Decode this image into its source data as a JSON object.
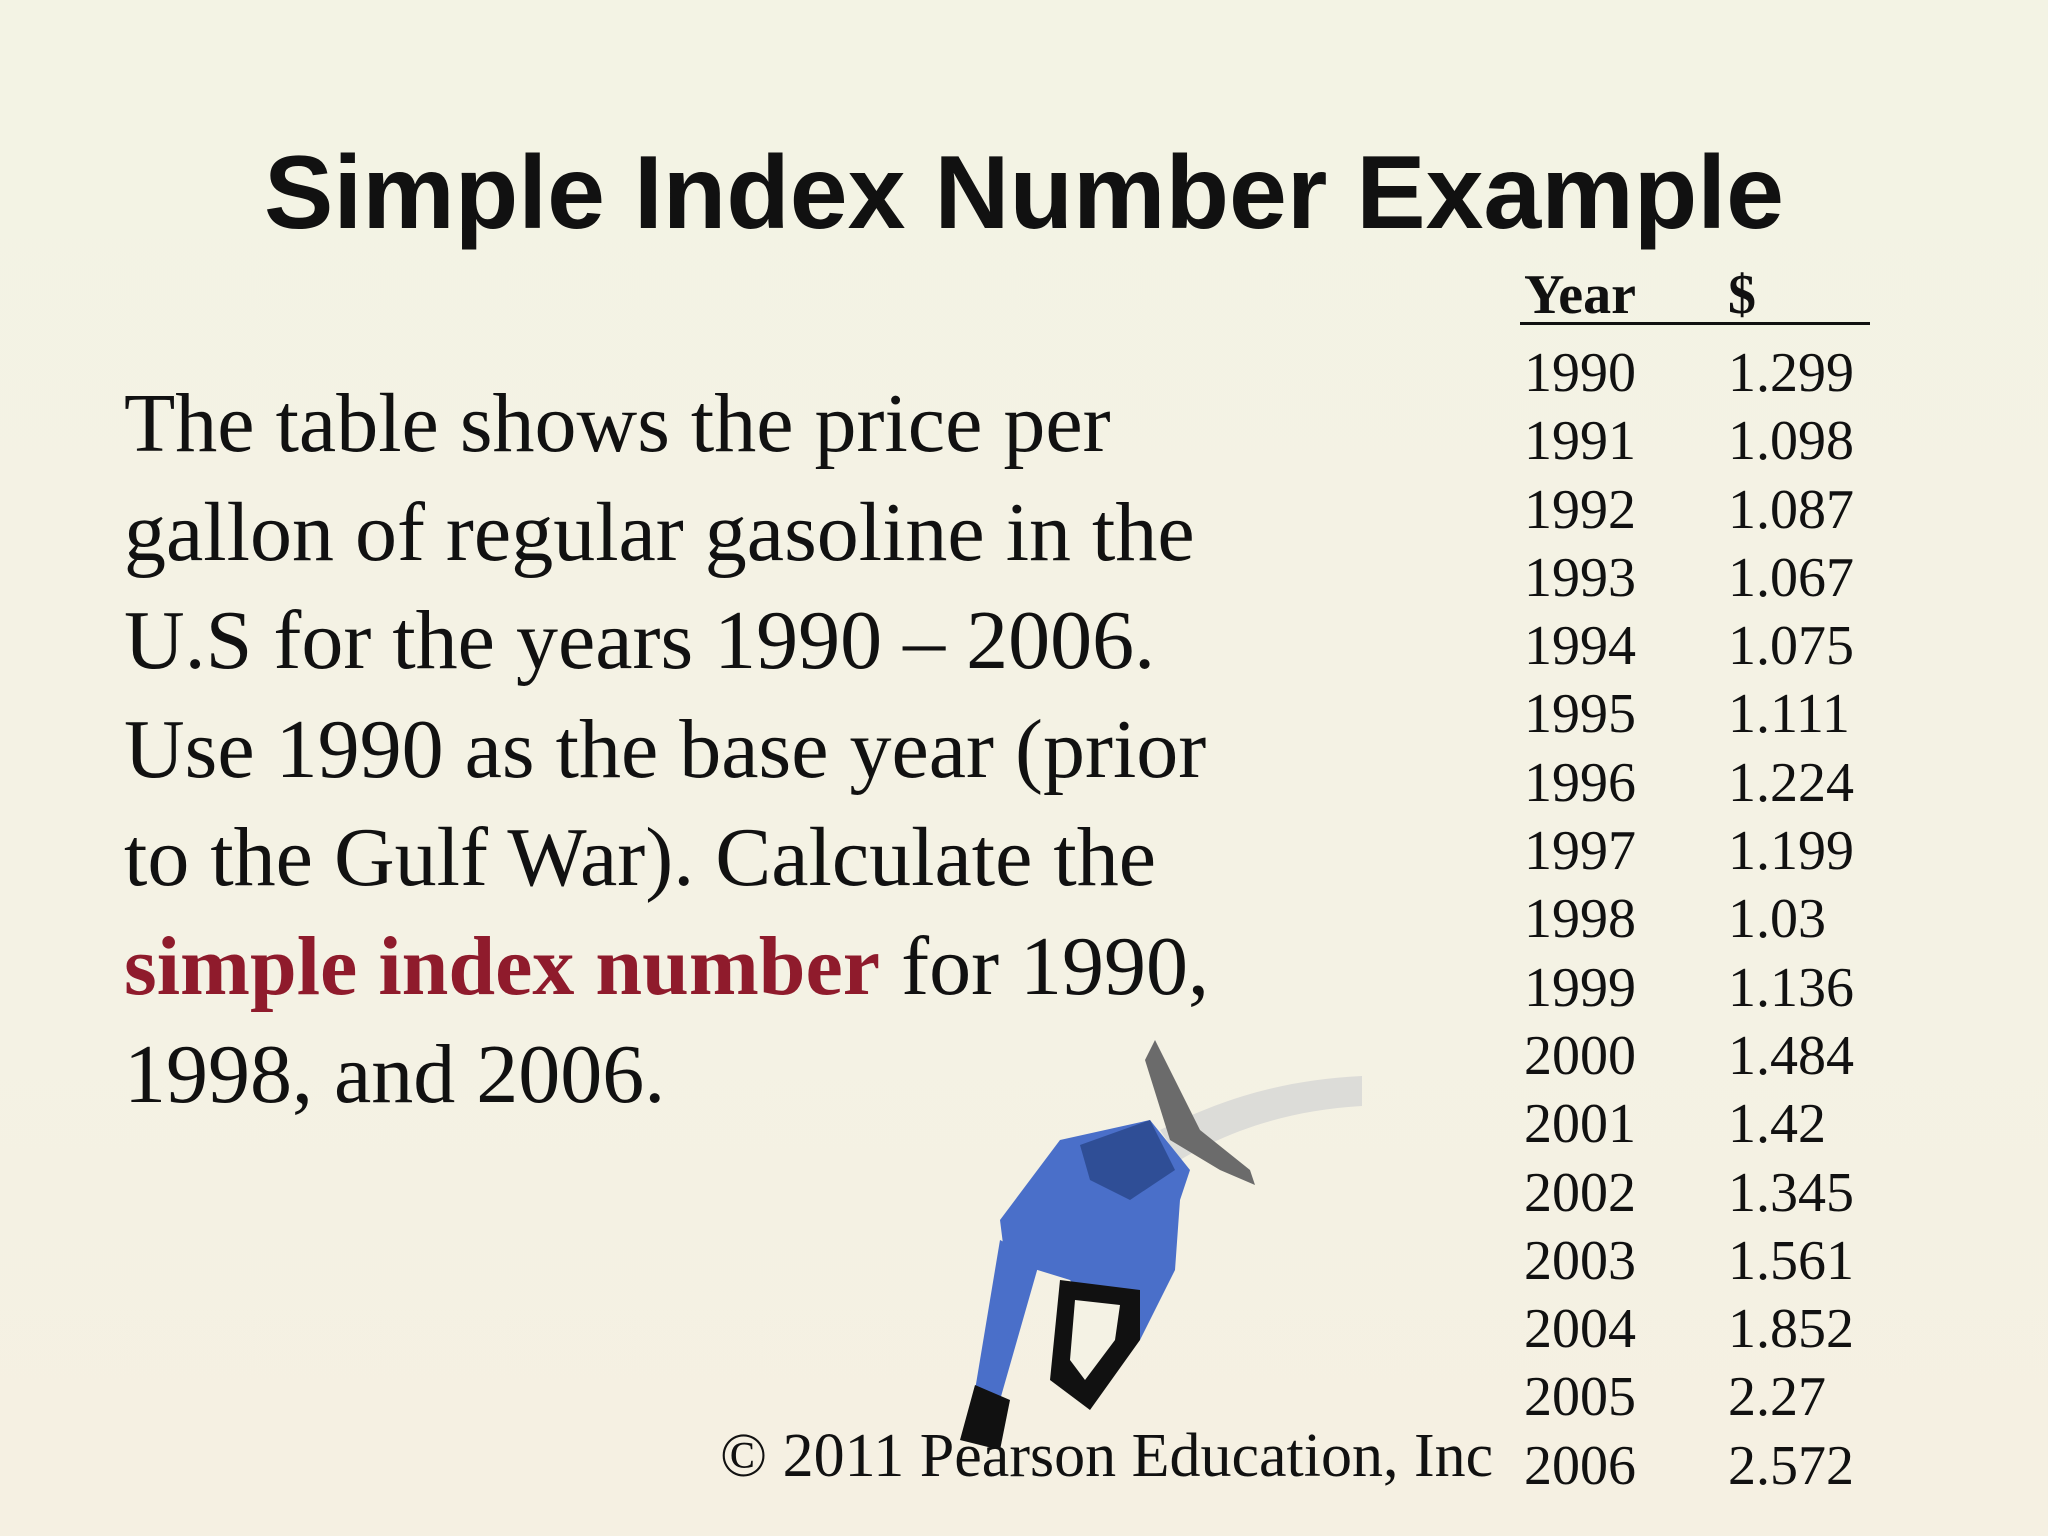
{
  "title": "Simple Index Number Example",
  "body": {
    "segments": [
      {
        "text": "The table shows the price per\ngallon of regular gasoline in the\nU.S for the years 1990 – 2006.\nUse 1990 as the base year (prior\nto the Gulf War). Calculate the\n",
        "emphasis": false
      },
      {
        "text": "simple index number",
        "emphasis": true
      },
      {
        "text": " for 1990,\n1998, and 2006.",
        "emphasis": false
      }
    ]
  },
  "table": {
    "header": [
      "Year",
      "$"
    ],
    "rows": [
      [
        "1990",
        "1.299"
      ],
      [
        "1991",
        "1.098"
      ],
      [
        "1992",
        "1.087"
      ],
      [
        "1993",
        "1.067"
      ],
      [
        "1994",
        "1.075"
      ],
      [
        "1995",
        "1.111"
      ],
      [
        "1996",
        "1.224"
      ],
      [
        "1997",
        "1.199"
      ],
      [
        "1998",
        "1.03"
      ],
      [
        "1999",
        "1.136"
      ],
      [
        "2000",
        "1.484"
      ],
      [
        "2001",
        "1.42"
      ],
      [
        "2002",
        "1.345"
      ],
      [
        "2003",
        "1.561"
      ],
      [
        "2004",
        "1.852"
      ],
      [
        "2005",
        "2.27"
      ],
      [
        "2006",
        "2.572"
      ]
    ]
  },
  "footer": "© 2011 Pearson Education, Inc"
}
